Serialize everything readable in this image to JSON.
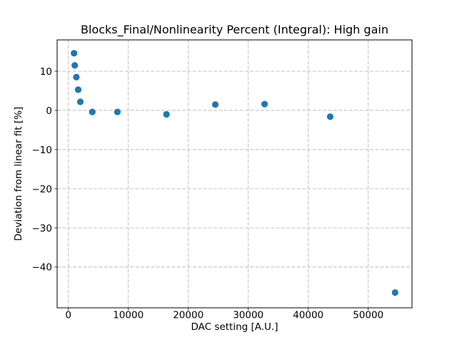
{
  "chart_data": {
    "type": "scatter",
    "title": "Blocks_Final/Nonlinearity Percent (Integral): High gain",
    "xlabel": "DAC setting [A.U.]",
    "ylabel": "Deviation from linear fit [%]",
    "x": [
      950,
      1070,
      1330,
      1640,
      2000,
      4000,
      8180,
      16360,
      24500,
      32720,
      43660,
      54480
    ],
    "y": [
      14.6,
      11.5,
      8.5,
      5.3,
      2.2,
      -0.4,
      -0.4,
      -1.0,
      1.5,
      1.6,
      -1.6,
      -46.5
    ],
    "xlim": [
      -1870,
      57300
    ],
    "ylim": [
      -50.4,
      18.0
    ],
    "xticks": {
      "values": [
        0,
        10000,
        20000,
        30000,
        40000,
        50000
      ],
      "labels": [
        "0",
        "10000",
        "20000",
        "30000",
        "40000",
        "50000"
      ]
    },
    "yticks": {
      "values": [
        10,
        0,
        -10,
        -20,
        -30,
        -40
      ],
      "labels": [
        "10",
        "0",
        "−10",
        "−20",
        "−30",
        "−40"
      ]
    },
    "grid": true,
    "grid_style": "dashed",
    "legend": "none",
    "marker_color": "#1f77b4",
    "grid_color": "#b0b0b0",
    "spine_color": "#000000",
    "background_color": "#ffffff"
  }
}
